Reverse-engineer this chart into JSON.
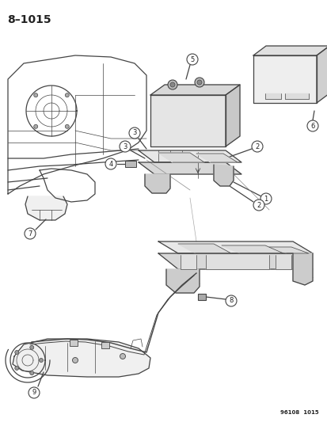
{
  "title": "8–1015",
  "footer": "96108  1015",
  "background_color": "#ffffff",
  "text_color": "#222222",
  "line_color": "#444444",
  "figsize": [
    4.14,
    5.33
  ],
  "dpi": 100,
  "part_labels": [
    "1",
    "2",
    "3",
    "4",
    "5",
    "6",
    "7",
    "8",
    "9"
  ],
  "circle_r": 7,
  "circle_lw": 0.8,
  "lw_main": 0.9,
  "lw_thin": 0.5
}
